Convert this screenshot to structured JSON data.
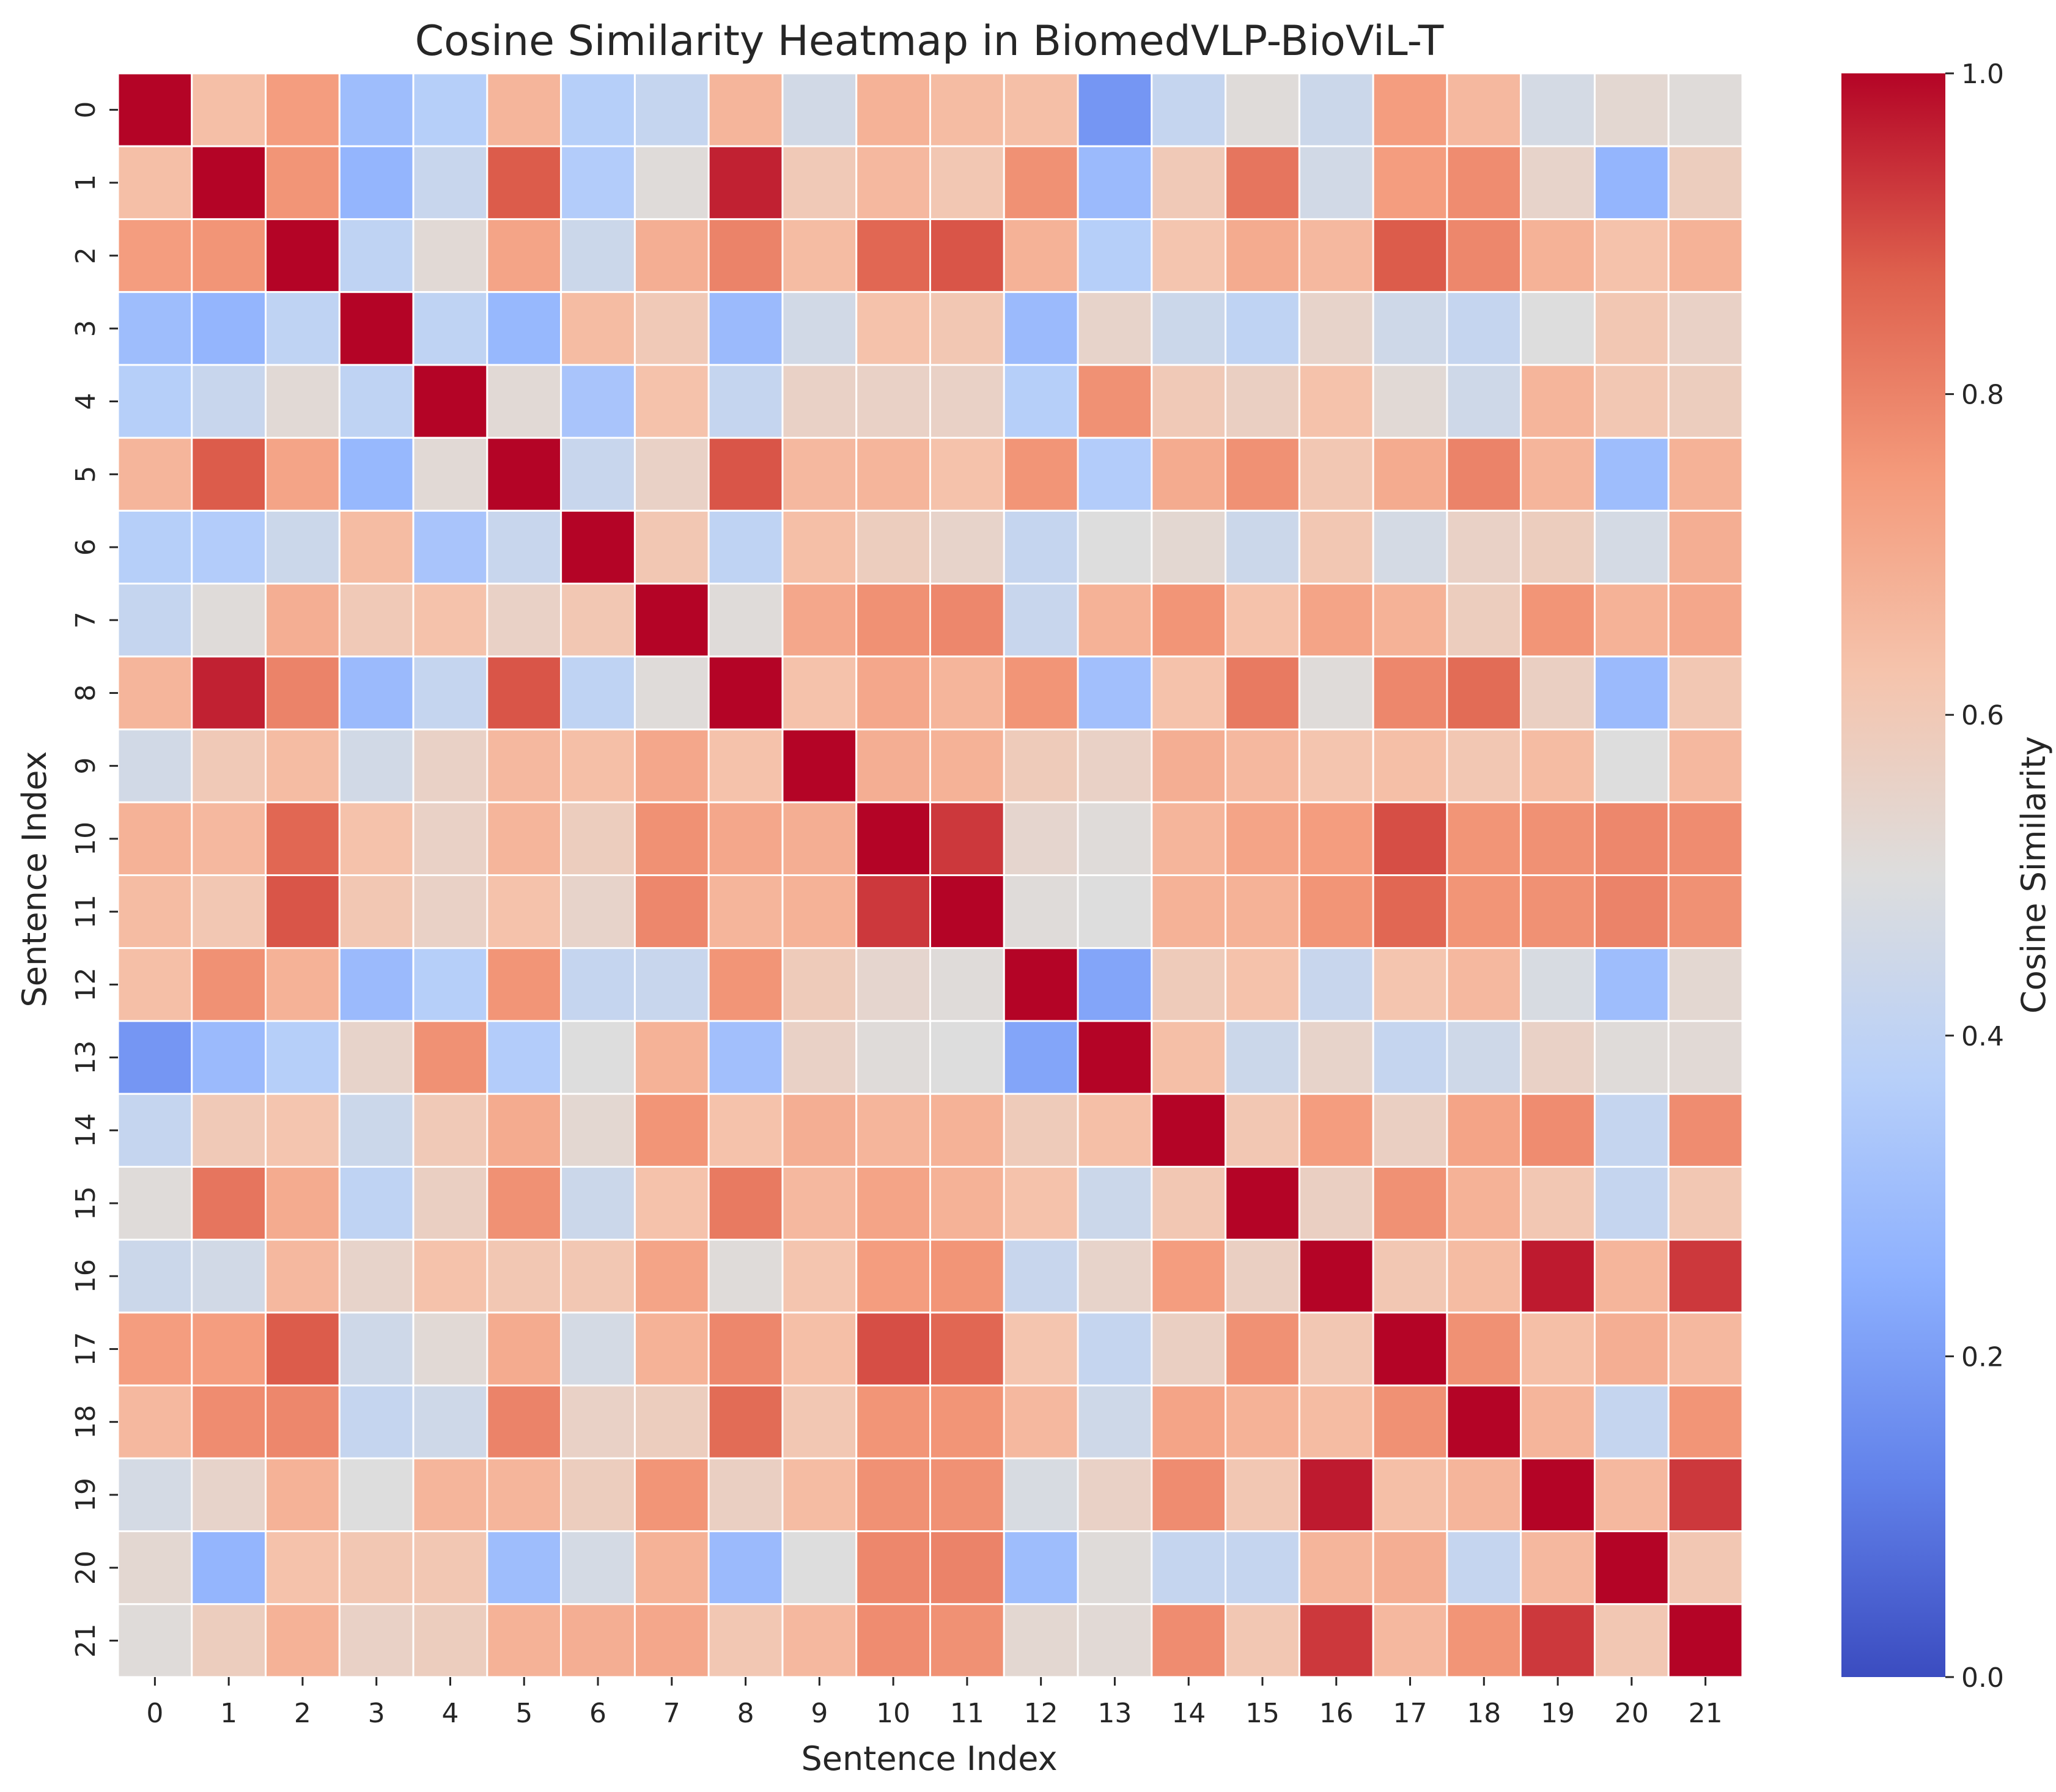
{
  "chart_data": {
    "type": "heatmap",
    "title": "Cosine Similarity Heatmap in BiomedVLP-BioViL-T",
    "xlabel": "Sentence Index",
    "ylabel": "Sentence Index",
    "x_categories": [
      "0",
      "1",
      "2",
      "3",
      "4",
      "5",
      "6",
      "7",
      "8",
      "9",
      "10",
      "11",
      "12",
      "13",
      "14",
      "15",
      "16",
      "17",
      "18",
      "19",
      "20",
      "21"
    ],
    "y_categories": [
      "0",
      "1",
      "2",
      "3",
      "4",
      "5",
      "6",
      "7",
      "8",
      "9",
      "10",
      "11",
      "12",
      "13",
      "14",
      "15",
      "16",
      "17",
      "18",
      "19",
      "20",
      "21"
    ],
    "colorbar": {
      "label": "Cosine Similarity",
      "colormap": "coolwarm",
      "vmin": 0.0,
      "vmax": 1.0,
      "ticks": [
        0.0,
        0.2,
        0.4,
        0.6,
        0.8,
        1.0
      ],
      "tick_labels": [
        "0.0",
        "0.2",
        "0.4",
        "0.6",
        "0.8",
        "1.0"
      ]
    },
    "grid_line_color": "#ffffff",
    "values": [
      [
        1.0,
        0.64,
        0.74,
        0.3,
        0.37,
        0.67,
        0.37,
        0.42,
        0.67,
        0.46,
        0.68,
        0.65,
        0.64,
        0.18,
        0.42,
        0.51,
        0.44,
        0.74,
        0.66,
        0.47,
        0.53,
        0.51
      ],
      [
        0.64,
        1.0,
        0.76,
        0.27,
        0.43,
        0.88,
        0.36,
        0.51,
        0.96,
        0.6,
        0.66,
        0.61,
        0.77,
        0.29,
        0.6,
        0.83,
        0.46,
        0.74,
        0.78,
        0.55,
        0.27,
        0.58
      ],
      [
        0.74,
        0.76,
        1.0,
        0.4,
        0.52,
        0.72,
        0.44,
        0.69,
        0.8,
        0.65,
        0.86,
        0.89,
        0.68,
        0.37,
        0.62,
        0.7,
        0.66,
        0.88,
        0.79,
        0.68,
        0.63,
        0.68
      ],
      [
        0.3,
        0.27,
        0.4,
        1.0,
        0.4,
        0.28,
        0.65,
        0.6,
        0.29,
        0.46,
        0.63,
        0.61,
        0.29,
        0.55,
        0.44,
        0.4,
        0.55,
        0.45,
        0.42,
        0.5,
        0.61,
        0.56
      ],
      [
        0.37,
        0.43,
        0.52,
        0.4,
        1.0,
        0.52,
        0.33,
        0.63,
        0.42,
        0.56,
        0.56,
        0.56,
        0.37,
        0.77,
        0.6,
        0.57,
        0.63,
        0.52,
        0.45,
        0.67,
        0.61,
        0.58
      ],
      [
        0.67,
        0.88,
        0.72,
        0.28,
        0.52,
        1.0,
        0.43,
        0.56,
        0.89,
        0.66,
        0.67,
        0.63,
        0.76,
        0.36,
        0.7,
        0.77,
        0.61,
        0.7,
        0.8,
        0.67,
        0.3,
        0.68
      ],
      [
        0.37,
        0.36,
        0.44,
        0.65,
        0.33,
        0.43,
        1.0,
        0.61,
        0.4,
        0.64,
        0.58,
        0.55,
        0.42,
        0.5,
        0.53,
        0.44,
        0.61,
        0.47,
        0.56,
        0.58,
        0.47,
        0.69
      ],
      [
        0.42,
        0.51,
        0.69,
        0.6,
        0.63,
        0.56,
        0.61,
        1.0,
        0.51,
        0.71,
        0.77,
        0.79,
        0.43,
        0.68,
        0.76,
        0.63,
        0.72,
        0.68,
        0.58,
        0.76,
        0.68,
        0.71
      ],
      [
        0.67,
        0.96,
        0.8,
        0.29,
        0.42,
        0.89,
        0.4,
        0.51,
        1.0,
        0.63,
        0.71,
        0.67,
        0.76,
        0.31,
        0.63,
        0.82,
        0.51,
        0.79,
        0.85,
        0.57,
        0.29,
        0.61
      ],
      [
        0.46,
        0.6,
        0.65,
        0.46,
        0.56,
        0.66,
        0.64,
        0.71,
        0.63,
        1.0,
        0.69,
        0.68,
        0.59,
        0.56,
        0.69,
        0.66,
        0.62,
        0.64,
        0.61,
        0.65,
        0.5,
        0.66
      ],
      [
        0.68,
        0.66,
        0.86,
        0.63,
        0.56,
        0.67,
        0.58,
        0.77,
        0.71,
        0.69,
        1.0,
        0.93,
        0.54,
        0.51,
        0.67,
        0.72,
        0.74,
        0.9,
        0.76,
        0.77,
        0.79,
        0.78
      ],
      [
        0.65,
        0.61,
        0.89,
        0.61,
        0.56,
        0.63,
        0.55,
        0.79,
        0.67,
        0.68,
        0.93,
        1.0,
        0.51,
        0.5,
        0.68,
        0.68,
        0.76,
        0.86,
        0.76,
        0.77,
        0.8,
        0.77
      ],
      [
        0.64,
        0.77,
        0.68,
        0.29,
        0.37,
        0.76,
        0.42,
        0.43,
        0.76,
        0.59,
        0.54,
        0.51,
        1.0,
        0.22,
        0.59,
        0.63,
        0.43,
        0.62,
        0.66,
        0.48,
        0.3,
        0.53
      ],
      [
        0.18,
        0.29,
        0.37,
        0.55,
        0.77,
        0.36,
        0.5,
        0.68,
        0.31,
        0.56,
        0.51,
        0.5,
        0.22,
        1.0,
        0.64,
        0.44,
        0.55,
        0.42,
        0.45,
        0.56,
        0.51,
        0.52
      ],
      [
        0.42,
        0.6,
        0.62,
        0.44,
        0.6,
        0.7,
        0.53,
        0.76,
        0.63,
        0.69,
        0.67,
        0.68,
        0.59,
        0.64,
        1.0,
        0.61,
        0.74,
        0.57,
        0.72,
        0.78,
        0.42,
        0.78
      ],
      [
        0.51,
        0.83,
        0.7,
        0.4,
        0.57,
        0.77,
        0.44,
        0.63,
        0.82,
        0.66,
        0.72,
        0.68,
        0.63,
        0.44,
        0.61,
        1.0,
        0.57,
        0.77,
        0.68,
        0.61,
        0.42,
        0.61
      ],
      [
        0.44,
        0.46,
        0.66,
        0.55,
        0.63,
        0.61,
        0.61,
        0.72,
        0.51,
        0.62,
        0.74,
        0.76,
        0.43,
        0.55,
        0.74,
        0.57,
        1.0,
        0.61,
        0.65,
        0.97,
        0.67,
        0.93
      ],
      [
        0.74,
        0.74,
        0.88,
        0.45,
        0.52,
        0.7,
        0.47,
        0.68,
        0.79,
        0.64,
        0.9,
        0.86,
        0.62,
        0.42,
        0.57,
        0.77,
        0.61,
        1.0,
        0.77,
        0.64,
        0.69,
        0.66
      ],
      [
        0.66,
        0.78,
        0.79,
        0.42,
        0.45,
        0.8,
        0.56,
        0.58,
        0.85,
        0.61,
        0.76,
        0.76,
        0.66,
        0.45,
        0.72,
        0.68,
        0.65,
        0.77,
        1.0,
        0.67,
        0.42,
        0.76
      ],
      [
        0.47,
        0.55,
        0.68,
        0.5,
        0.67,
        0.67,
        0.58,
        0.76,
        0.57,
        0.65,
        0.77,
        0.77,
        0.48,
        0.56,
        0.78,
        0.61,
        0.97,
        0.64,
        0.67,
        1.0,
        0.66,
        0.93
      ],
      [
        0.53,
        0.27,
        0.63,
        0.61,
        0.61,
        0.3,
        0.47,
        0.68,
        0.29,
        0.5,
        0.79,
        0.8,
        0.3,
        0.51,
        0.42,
        0.42,
        0.67,
        0.69,
        0.42,
        0.66,
        1.0,
        0.61
      ],
      [
        0.51,
        0.58,
        0.68,
        0.56,
        0.58,
        0.68,
        0.69,
        0.71,
        0.61,
        0.66,
        0.78,
        0.77,
        0.53,
        0.52,
        0.78,
        0.61,
        0.93,
        0.66,
        0.76,
        0.93,
        0.61,
        1.0
      ]
    ]
  }
}
